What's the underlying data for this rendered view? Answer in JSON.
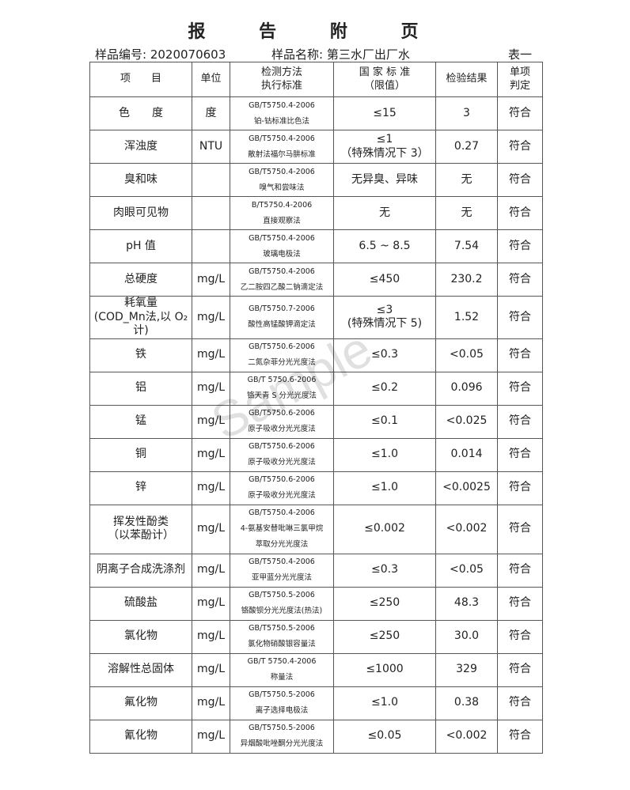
{
  "title": "报 告 附 页",
  "sample_no": "样品编号: 2020070603",
  "sample_name": "样品名称: 第三水厂出厂水",
  "table_no": "表一",
  "watermark": "Sample",
  "headers": {
    "item": "项　　目",
    "unit": "单位",
    "method1": "检测方法",
    "method2": "执行标准",
    "limit1": "国 家 标 准",
    "limit2": "（限值）",
    "result": "检验结果",
    "judge1": "单项",
    "judge2": "判定"
  },
  "rows": [
    {
      "item": "色　　度",
      "unit": "度",
      "std": "GB/T5750.4-2006",
      "method": "铂-钴标准比色法",
      "limit": "≤15",
      "result": "3",
      "judge": "符合"
    },
    {
      "item": "浑浊度",
      "unit": "NTU",
      "std": "GB/T5750.4-2006",
      "method": "散射法福尔马肼标准",
      "limit": "≤1",
      "limit2": "（特殊情况下 3）",
      "result": "0.27",
      "judge": "符合"
    },
    {
      "item": "臭和味",
      "unit": "",
      "std": "GB/T5750.4-2006",
      "method": "嗅气和尝味法",
      "limit": "无异臭、异味",
      "result": "无",
      "judge": "符合"
    },
    {
      "item": "肉眼可见物",
      "unit": "",
      "std": "B/T5750.4-2006",
      "method": "直接观察法",
      "limit": "无",
      "result": "无",
      "judge": "符合"
    },
    {
      "item": "pH 值",
      "unit": "",
      "std": "GB/T5750.4-2006",
      "method": "玻璃电极法",
      "limit": "6.5 ~ 8.5",
      "result": "7.54",
      "judge": "符合"
    },
    {
      "item": "总硬度",
      "unit": "mg/L",
      "std": "GB/T5750.4-2006",
      "method": "乙二胺四乙酸二钠滴定法",
      "limit": "≤450",
      "result": "230.2",
      "judge": "符合"
    },
    {
      "item": "耗氧量",
      "item2": "(COD_Mn法,以 O₂计)",
      "unit": "mg/L",
      "std": "GB/T5750.7-2006",
      "method": "酸性高锰酸钾滴定法",
      "limit": "≤3",
      "limit2": "(特殊情况下 5)",
      "result": "1.52",
      "judge": "符合"
    },
    {
      "item": "铁",
      "unit": "mg/L",
      "std": "GB/T5750.6-2006",
      "method": "二氮杂菲分光光度法",
      "limit": "≤0.3",
      "result": "<0.05",
      "judge": "符合"
    },
    {
      "item": "铝",
      "unit": "mg/L",
      "std": "GB/T 5750.6-2006",
      "method": "铬天青 S 分光光度法",
      "limit": "≤0.2",
      "result": "0.096",
      "judge": "符合"
    },
    {
      "item": "锰",
      "unit": "mg/L",
      "std": "GB/T5750.6-2006",
      "method": "原子吸收分光光度法",
      "limit": "≤0.1",
      "result": "<0.025",
      "judge": "符合"
    },
    {
      "item": "铜",
      "unit": "mg/L",
      "std": "GB/T5750.6-2006",
      "method": "原子吸收分光光度法",
      "limit": "≤1.0",
      "result": "0.014",
      "judge": "符合"
    },
    {
      "item": "锌",
      "unit": "mg/L",
      "std": "GB/T5750.6-2006",
      "method": "原子吸收分光光度法",
      "limit": "≤1.0",
      "result": "<0.0025",
      "judge": "符合"
    },
    {
      "item": "挥发性酚类",
      "item2": "（以苯酚计）",
      "unit": "mg/L",
      "std": "GB/T5750.4-2006",
      "method": "4-氨基安替吡啉三氯甲烷",
      "method2": "萃取分光光度法",
      "limit": "≤0.002",
      "result": "<0.002",
      "judge": "符合"
    },
    {
      "item": "阴离子合成洗涤剂",
      "unit": "mg/L",
      "std": "GB/T5750.4-2006",
      "method": "亚甲蓝分光光度法",
      "limit": "≤0.3",
      "result": "<0.05",
      "judge": "符合"
    },
    {
      "item": "硫酸盐",
      "unit": "mg/L",
      "std": "GB/T5750.5-2006",
      "method": "铬酸钡分光光度法(热法)",
      "limit": "≤250",
      "result": "48.3",
      "judge": "符合"
    },
    {
      "item": "氯化物",
      "unit": "mg/L",
      "std": "GB/T5750.5-2006",
      "method": "氯化物硝酸银容量法",
      "limit": "≤250",
      "result": "30.0",
      "judge": "符合"
    },
    {
      "item": "溶解性总固体",
      "unit": "mg/L",
      "std": "GB/T 5750.4-2006",
      "method": "称量法",
      "limit": "≤1000",
      "result": "329",
      "judge": "符合"
    },
    {
      "item": "氟化物",
      "unit": "mg/L",
      "std": "GB/T5750.5-2006",
      "method": "离子选择电极法",
      "limit": "≤1.0",
      "result": "0.38",
      "judge": "符合"
    },
    {
      "item": "氰化物",
      "unit": "mg/L",
      "std": "GB/T5750.5-2006",
      "method": "异烟酸吡唑酮分光光度法",
      "limit": "≤0.05",
      "result": "<0.002",
      "judge": "符合"
    }
  ]
}
